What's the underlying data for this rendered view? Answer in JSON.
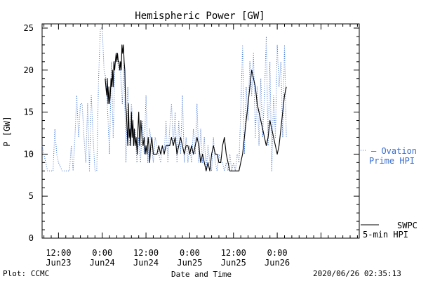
{
  "colors": {
    "ovation": "#3b6fd0",
    "swpc": "#000000",
    "axis": "#000000",
    "background": "#ffffff"
  },
  "footer": {
    "plot_credit": "Plot: CCMC",
    "timestamp": "2020/06/26 02:35:13"
  },
  "chart_data": {
    "type": "line",
    "title": "Hemispheric Power [GW]",
    "xlabel": "Date and Time",
    "ylabel": "P [GW]",
    "ylim": [
      0,
      25.5
    ],
    "xlim_hours": [
      -16.5,
      70.5
    ],
    "x_unit": "hours since 2020-06-24 00:00",
    "grid": false,
    "y_ticks": [
      0,
      5,
      10,
      15,
      20,
      25
    ],
    "x_ticks": [
      {
        "x": -12,
        "time": "12:00",
        "date": "Jun23"
      },
      {
        "x": 0,
        "time": "0:00",
        "date": "Jun24"
      },
      {
        "x": 12,
        "time": "12:00",
        "date": "Jun24"
      },
      {
        "x": 24,
        "time": "0:00",
        "date": "Jun25"
      },
      {
        "x": 36,
        "time": "12:00",
        "date": "Jun25"
      },
      {
        "x": 48,
        "time": "0:00",
        "date": "Jun26"
      }
    ],
    "legend": [
      {
        "key": "ovation",
        "lines": [
          "— Ovation",
          "Prime HPI"
        ]
      },
      {
        "key": "swpc",
        "lines": [
          "SWPC",
          "5-min HPI"
        ]
      }
    ],
    "series": [
      {
        "key": "ovation",
        "name": "Ovation Prime HPI",
        "style": "dotted",
        "points": [
          [
            -16.5,
            11
          ],
          [
            -16,
            10
          ],
          [
            -15.5,
            9
          ],
          [
            -15,
            8
          ],
          [
            -13.5,
            8
          ],
          [
            -13,
            13
          ],
          [
            -12.5,
            10
          ],
          [
            -12,
            9
          ],
          [
            -11,
            8
          ],
          [
            -9,
            8
          ],
          [
            -8.5,
            11
          ],
          [
            -8,
            8
          ],
          [
            -7.5,
            12
          ],
          [
            -7,
            17
          ],
          [
            -6.5,
            12
          ],
          [
            -6,
            16
          ],
          [
            -5.5,
            16
          ],
          [
            -5,
            12
          ],
          [
            -4.5,
            9
          ],
          [
            -4,
            16
          ],
          [
            -3.5,
            8
          ],
          [
            -3,
            17
          ],
          [
            -2.5,
            12
          ],
          [
            -2,
            8
          ],
          [
            -1.5,
            8
          ],
          [
            -1,
            19
          ],
          [
            -0.5,
            25
          ],
          [
            0,
            25
          ],
          [
            0.5,
            20
          ],
          [
            1,
            19
          ],
          [
            1.5,
            15
          ],
          [
            2,
            10
          ],
          [
            2.5,
            21
          ],
          [
            3,
            12
          ],
          [
            3.5,
            21
          ],
          [
            4,
            22
          ],
          [
            4.5,
            20
          ],
          [
            5,
            20
          ],
          [
            5.5,
            16
          ],
          [
            6,
            21
          ],
          [
            6.5,
            9
          ],
          [
            7,
            18
          ],
          [
            7.5,
            11
          ],
          [
            8,
            16
          ],
          [
            8.5,
            13
          ],
          [
            9,
            13
          ],
          [
            9.5,
            9
          ],
          [
            10,
            12
          ],
          [
            10.5,
            9
          ],
          [
            11,
            14
          ],
          [
            11.5,
            10
          ],
          [
            12,
            17
          ],
          [
            12.5,
            9
          ],
          [
            13,
            13
          ],
          [
            13.5,
            11
          ],
          [
            14,
            9
          ],
          [
            14.5,
            12
          ],
          [
            15,
            11
          ],
          [
            15.5,
            10
          ],
          [
            16,
            9
          ],
          [
            16.5,
            11
          ],
          [
            17,
            10
          ],
          [
            17.5,
            14
          ],
          [
            18,
            9
          ],
          [
            18.5,
            13
          ],
          [
            19,
            16
          ],
          [
            19.5,
            11
          ],
          [
            20,
            15
          ],
          [
            20.5,
            9
          ],
          [
            21,
            14
          ],
          [
            21.5,
            10
          ],
          [
            22,
            17
          ],
          [
            22.5,
            9
          ],
          [
            23,
            12
          ],
          [
            23.5,
            9
          ],
          [
            24,
            11
          ],
          [
            24.5,
            9
          ],
          [
            25,
            13
          ],
          [
            25.5,
            10
          ],
          [
            26,
            16
          ],
          [
            26.5,
            9
          ],
          [
            27,
            13
          ],
          [
            27.5,
            9
          ],
          [
            28,
            12
          ],
          [
            28.5,
            8
          ],
          [
            29,
            11
          ],
          [
            29.5,
            9
          ],
          [
            30,
            8
          ],
          [
            30.5,
            12
          ],
          [
            31,
            9
          ],
          [
            31.5,
            8
          ],
          [
            32,
            10
          ],
          [
            32.5,
            9
          ],
          [
            33,
            9
          ],
          [
            33.5,
            8
          ],
          [
            34,
            9
          ],
          [
            34.5,
            8
          ],
          [
            35,
            10
          ],
          [
            35.5,
            8
          ],
          [
            36,
            9
          ],
          [
            36.5,
            8
          ],
          [
            37,
            10
          ],
          [
            37.5,
            9
          ],
          [
            38,
            15
          ],
          [
            38.5,
            23
          ],
          [
            39,
            10
          ],
          [
            39.5,
            18
          ],
          [
            40,
            14
          ],
          [
            40.5,
            21
          ],
          [
            41,
            17
          ],
          [
            41.5,
            22
          ],
          [
            42,
            12
          ],
          [
            42.5,
            18
          ],
          [
            43,
            11
          ],
          [
            43.5,
            19
          ],
          [
            44,
            12
          ],
          [
            44.5,
            17
          ],
          [
            45,
            24
          ],
          [
            45.5,
            11
          ],
          [
            46,
            21
          ],
          [
            46.5,
            8
          ],
          [
            47,
            17
          ],
          [
            47.5,
            12
          ],
          [
            48,
            23
          ],
          [
            48.5,
            18
          ],
          [
            49,
            21
          ],
          [
            49.5,
            12
          ],
          [
            50,
            23
          ],
          [
            50.5,
            12
          ]
        ]
      },
      {
        "key": "swpc",
        "name": "SWPC 5-min HPI",
        "style": "solid",
        "points": [
          [
            0.8,
            19
          ],
          [
            1,
            18
          ],
          [
            1.2,
            17
          ],
          [
            1.4,
            19
          ],
          [
            1.6,
            16
          ],
          [
            1.8,
            18
          ],
          [
            2,
            16
          ],
          [
            2.2,
            17
          ],
          [
            2.4,
            19
          ],
          [
            2.6,
            18
          ],
          [
            2.8,
            20
          ],
          [
            3,
            18
          ],
          [
            3.2,
            21
          ],
          [
            3.4,
            20
          ],
          [
            3.6,
            21
          ],
          [
            3.8,
            22
          ],
          [
            4,
            21
          ],
          [
            4.2,
            22
          ],
          [
            4.4,
            21
          ],
          [
            4.6,
            21
          ],
          [
            4.8,
            20
          ],
          [
            5,
            21
          ],
          [
            5.2,
            20
          ],
          [
            5.4,
            23
          ],
          [
            5.6,
            22
          ],
          [
            5.8,
            23
          ],
          [
            6,
            21
          ],
          [
            6.2,
            20
          ],
          [
            6.4,
            16
          ],
          [
            6.6,
            15
          ],
          [
            6.8,
            13
          ],
          [
            7,
            11
          ],
          [
            7.2,
            16
          ],
          [
            7.4,
            12
          ],
          [
            7.6,
            13
          ],
          [
            7.8,
            11
          ],
          [
            8,
            15
          ],
          [
            8.2,
            12
          ],
          [
            8.4,
            14
          ],
          [
            8.6,
            11
          ],
          [
            8.8,
            13
          ],
          [
            9,
            11
          ],
          [
            9.3,
            12
          ],
          [
            9.6,
            10
          ],
          [
            9.8,
            13
          ],
          [
            10,
            15
          ],
          [
            10.3,
            11
          ],
          [
            10.6,
            14
          ],
          [
            10.9,
            12
          ],
          [
            11.2,
            11
          ],
          [
            11.5,
            12
          ],
          [
            11.8,
            10
          ],
          [
            12,
            11
          ],
          [
            12.3,
            10
          ],
          [
            12.6,
            12
          ],
          [
            12.8,
            11
          ],
          [
            13,
            9
          ],
          [
            13.3,
            11
          ],
          [
            13.6,
            12
          ],
          [
            14,
            10
          ],
          [
            14.5,
            10
          ],
          [
            15,
            10
          ],
          [
            15.5,
            11
          ],
          [
            16,
            10
          ],
          [
            16.5,
            11
          ],
          [
            17,
            10
          ],
          [
            17.5,
            11
          ],
          [
            18,
            11
          ],
          [
            18.5,
            11
          ],
          [
            19,
            12
          ],
          [
            19.5,
            11
          ],
          [
            20,
            12
          ],
          [
            20.5,
            10
          ],
          [
            21,
            11
          ],
          [
            21.5,
            12
          ],
          [
            22,
            11
          ],
          [
            22.5,
            10
          ],
          [
            23,
            11
          ],
          [
            23.5,
            11
          ],
          [
            24,
            10
          ],
          [
            24.5,
            11
          ],
          [
            25,
            10
          ],
          [
            25.5,
            11
          ],
          [
            26,
            12
          ],
          [
            26.5,
            11
          ],
          [
            27,
            9
          ],
          [
            27.5,
            10
          ],
          [
            28,
            9
          ],
          [
            28.5,
            8
          ],
          [
            29,
            9
          ],
          [
            29.5,
            8
          ],
          [
            30,
            10
          ],
          [
            30.5,
            11
          ],
          [
            31,
            10
          ],
          [
            31.5,
            10
          ],
          [
            32,
            9
          ],
          [
            32.5,
            9
          ],
          [
            33,
            11
          ],
          [
            33.5,
            12
          ],
          [
            34,
            10
          ],
          [
            34.5,
            9
          ],
          [
            35,
            8
          ],
          [
            35.5,
            8
          ],
          [
            36,
            8
          ],
          [
            36.5,
            8
          ],
          [
            37,
            8
          ],
          [
            37.5,
            8
          ],
          [
            38,
            9
          ],
          [
            38.5,
            10
          ],
          [
            39,
            12
          ],
          [
            39.5,
            14
          ],
          [
            40,
            16
          ],
          [
            40.5,
            18
          ],
          [
            41,
            20
          ],
          [
            41.5,
            19
          ],
          [
            42,
            18
          ],
          [
            42.5,
            16
          ],
          [
            43,
            15
          ],
          [
            43.5,
            14
          ],
          [
            44,
            13
          ],
          [
            44.5,
            12
          ],
          [
            45,
            11
          ],
          [
            45.5,
            12
          ],
          [
            46,
            14
          ],
          [
            46.5,
            13
          ],
          [
            47,
            12
          ],
          [
            47.5,
            11
          ],
          [
            48,
            10
          ],
          [
            48.5,
            11
          ],
          [
            49,
            13
          ],
          [
            49.5,
            15
          ],
          [
            50,
            17
          ],
          [
            50.5,
            18
          ]
        ]
      }
    ]
  }
}
